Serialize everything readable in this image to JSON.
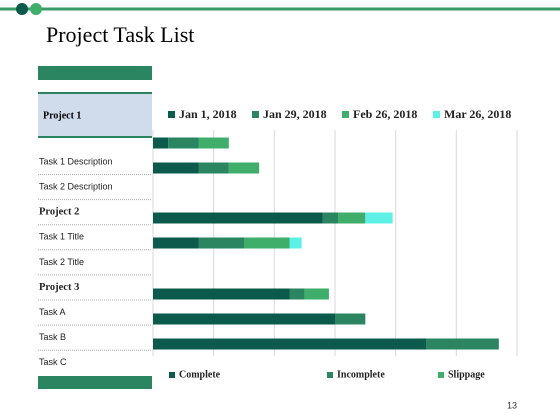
{
  "slide": {
    "title": "Project Task List",
    "page_number": "13"
  },
  "task_list": {
    "header": "Project 1",
    "rows": [
      {
        "text": "Task 1 Description",
        "heading": false
      },
      {
        "text": "Task 2 Description",
        "heading": false
      },
      {
        "text": "Project 2",
        "heading": true
      },
      {
        "text": "Task 1 Title",
        "heading": false
      },
      {
        "text": "Task 2 Title",
        "heading": false
      },
      {
        "text": "Project 3",
        "heading": true
      },
      {
        "text": "Task A",
        "heading": false
      },
      {
        "text": "Task B",
        "heading": false
      },
      {
        "text": "Task C",
        "heading": false
      }
    ]
  },
  "chart_data": {
    "type": "bar",
    "orientation": "horizontal",
    "stacked": true,
    "series": [
      {
        "name": "Jan 1, 2018",
        "color": "#0b5a4b",
        "values": [
          2.5,
          7.5,
          28,
          7.5,
          22.5,
          30,
          45
        ]
      },
      {
        "name": "Jan 29, 2018",
        "color": "#2a8560",
        "values": [
          5,
          5,
          2.5,
          7.5,
          2.5,
          5,
          12
        ]
      },
      {
        "name": "Feb 26, 2018",
        "color": "#3fae6b",
        "values": [
          5,
          5,
          4.5,
          7.5,
          4,
          0,
          0
        ]
      },
      {
        "name": "Mar 26, 2018",
        "color": "#5cf0e6",
        "values": [
          0,
          0,
          4.5,
          2,
          0,
          0,
          0
        ]
      }
    ],
    "xlim": [
      0,
      60
    ],
    "xticks": [
      0,
      10,
      20,
      30,
      40,
      50,
      60
    ],
    "grid": true,
    "status_legend": [
      {
        "name": "Complete",
        "color": "#0b5a4b"
      },
      {
        "name": "Incomplete",
        "color": "#2a8560"
      },
      {
        "name": "Slippage",
        "color": "#3fae6b"
      }
    ]
  }
}
